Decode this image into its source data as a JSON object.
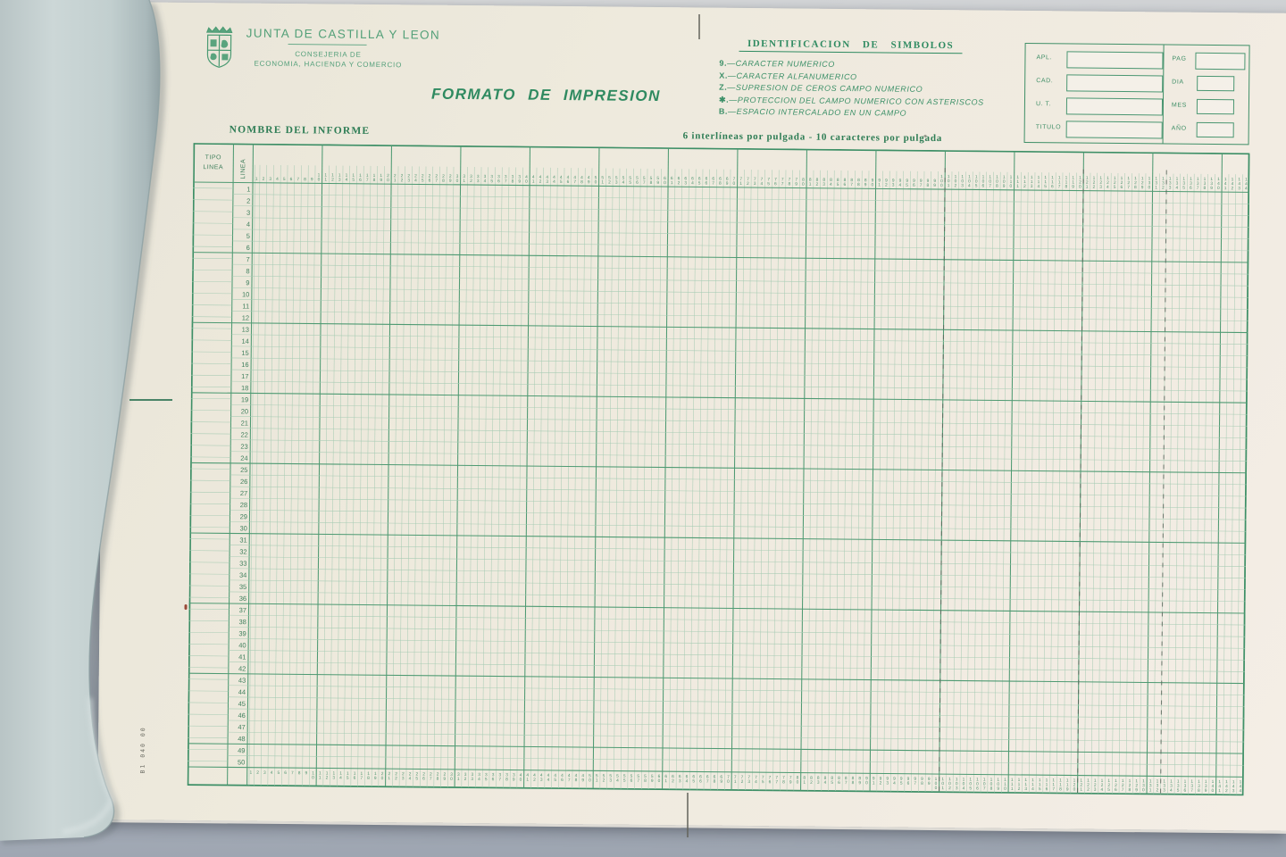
{
  "colors": {
    "ink_green": "#2e8a60",
    "grid_heavy_green": "#4e9a72",
    "grid_light_green": "#a6cbb3",
    "paper_cream": "#efebde",
    "cover_blue_gray": "#c3cfd0",
    "pencil_mark": "#5a655c"
  },
  "letterhead": {
    "org": "JUNTA DE CASTILLA Y LEON",
    "dept_line1": "CONSEJERIA DE",
    "dept_line2": "ECONOMIA, HACIENDA Y COMERCIO"
  },
  "title": "FORMATO DE IMPRESION",
  "symbols": {
    "heading": "IDENTIFICACION DE SIMBOLOS",
    "items": [
      {
        "code": "9.",
        "label": "—CARACTER NUMERICO"
      },
      {
        "code": "X.",
        "label": "—CARACTER ALFANUMERICO"
      },
      {
        "code": "Z.",
        "label": "—SUPRESION DE CEROS CAMPO NUMERICO"
      },
      {
        "code": "✱.",
        "label": "—PROTECCION DEL CAMPO NUMERICO CON ASTERISCOS"
      },
      {
        "code": "B.",
        "label": "—ESPACIO INTERCALADO EN UN CAMPO"
      }
    ]
  },
  "info_box": {
    "left_fields": [
      "APL.",
      "CAD.",
      "U. T.",
      "TITULO"
    ],
    "right_fields": [
      "PAG",
      "DIA",
      "MES",
      "AÑO"
    ]
  },
  "report": {
    "name_label": "NOMBRE DEL INFORME",
    "pitch_note": "6 interlíneas por pulgada  -  10 caracteres por pulgada"
  },
  "grid": {
    "tipo_label_line1": "TIPO",
    "tipo_label_line2": "LINEA",
    "linea_label": "LINEA",
    "first_column": 1,
    "columns": 144,
    "first_row": 1,
    "rows": 50,
    "column_group_size": 10,
    "row_group_size": 6,
    "pencil_marked_columns": [
      100,
      120,
      132
    ]
  },
  "margin_code": "B1 040 00"
}
